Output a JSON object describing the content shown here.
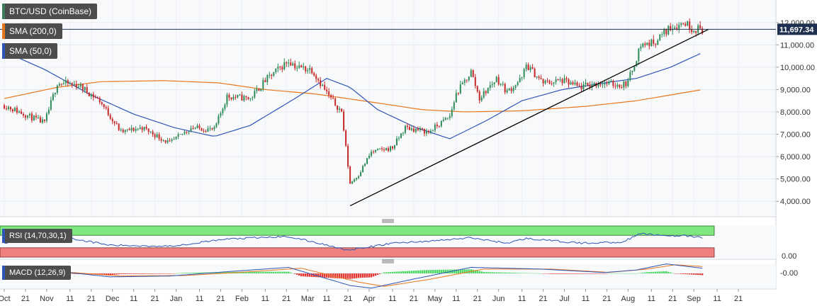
{
  "symbol_label": "BTC/USD (CoinBase)",
  "price_label": "11,697.34",
  "indicators": [
    {
      "label": "SMA (200,0)",
      "color": "#e8781e"
    },
    {
      "label": "SMA (50,0)",
      "color": "#2f55b4"
    }
  ],
  "rsi_label": "RSI (14,70,30,1)",
  "rsi_axis_label": "0.00",
  "macd_label": "MACD (12,26,9)",
  "macd_axis_label": "-0.00",
  "colors": {
    "up_candle": "#2e8b57",
    "down_candle": "#c62828",
    "sma200": "#e8781e",
    "sma50": "#2f55b4",
    "rsi_overbought_zone": "#7ee77e",
    "rsi_oversold_zone": "#f08080",
    "rsi_line": "#2f55b4",
    "macd_line": "#2f55b4",
    "signal_line": "#e8781e",
    "hist_pos": "#4cd964",
    "hist_neg": "#e53935",
    "price_tag": "#1f2f4f"
  },
  "chart_data": [
    {
      "type": "candlestick",
      "title": "BTC/USD (CoinBase)",
      "x_tick_labels": [
        "Oct",
        "21",
        "Nov",
        "11",
        "21",
        "Dec",
        "11",
        "21",
        "Jan",
        "11",
        "21",
        "Feb",
        "11",
        "21",
        "Mar",
        "11",
        "21",
        "Apr",
        "11",
        "21",
        "May",
        "11",
        "21",
        "Jun",
        "11",
        "21",
        "Jul",
        "11",
        "21",
        "Aug",
        "11",
        "21",
        "Sep",
        "11",
        "21"
      ],
      "y_tick_labels": [
        "4,000.00",
        "5,000.00",
        "6,000.00",
        "7,000.00",
        "8,000.00",
        "9,000.00",
        "10,000.00",
        "11,000.00",
        "12,000.00"
      ],
      "ylim": [
        3500,
        12500
      ],
      "close_anchors": [
        [
          "2019-10-01",
          8300
        ],
        [
          "2019-10-20",
          7500
        ],
        [
          "2019-10-26",
          9300
        ],
        [
          "2019-11-05",
          9200
        ],
        [
          "2019-11-15",
          8500
        ],
        [
          "2019-11-25",
          7100
        ],
        [
          "2019-12-05",
          7300
        ],
        [
          "2019-12-18",
          6600
        ],
        [
          "2019-12-28",
          7300
        ],
        [
          "2020-01-08",
          7200
        ],
        [
          "2020-01-14",
          8700
        ],
        [
          "2020-01-25",
          8600
        ],
        [
          "2020-02-01",
          9400
        ],
        [
          "2020-02-12",
          10300
        ],
        [
          "2020-02-16",
          10000
        ],
        [
          "2020-02-23",
          9900
        ],
        [
          "2020-03-02",
          8700
        ],
        [
          "2020-03-08",
          8000
        ],
        [
          "2020-03-12",
          4800
        ],
        [
          "2020-03-16",
          5200
        ],
        [
          "2020-03-22",
          6200
        ],
        [
          "2020-04-01",
          6400
        ],
        [
          "2020-04-07",
          7300
        ],
        [
          "2020-04-18",
          7100
        ],
        [
          "2020-04-28",
          7800
        ],
        [
          "2020-05-01",
          8800
        ],
        [
          "2020-05-08",
          9800
        ],
        [
          "2020-05-12",
          8600
        ],
        [
          "2020-05-20",
          9500
        ],
        [
          "2020-05-25",
          8900
        ],
        [
          "2020-06-01",
          9500
        ],
        [
          "2020-06-03",
          10100
        ],
        [
          "2020-06-11",
          9300
        ],
        [
          "2020-06-20",
          9400
        ],
        [
          "2020-06-28",
          9100
        ],
        [
          "2020-07-08",
          9300
        ],
        [
          "2020-07-18",
          9200
        ],
        [
          "2020-07-21",
          9350
        ],
        [
          "2020-07-27",
          11000
        ],
        [
          "2020-08-02",
          11100
        ],
        [
          "2020-08-10",
          11800
        ],
        [
          "2020-08-17",
          12000
        ],
        [
          "2020-08-20",
          11750
        ],
        [
          "2020-08-25",
          11697
        ]
      ],
      "sma200_anchors": [
        [
          "2019-10-01",
          8600
        ],
        [
          "2019-10-26",
          9100
        ],
        [
          "2019-11-15",
          9350
        ],
        [
          "2019-12-15",
          9400
        ],
        [
          "2020-01-10",
          9300
        ],
        [
          "2020-02-01",
          9000
        ],
        [
          "2020-02-25",
          8800
        ],
        [
          "2020-03-25",
          8400
        ],
        [
          "2020-04-15",
          8100
        ],
        [
          "2020-05-05",
          8000
        ],
        [
          "2020-06-01",
          8050
        ],
        [
          "2020-07-01",
          8250
        ],
        [
          "2020-07-25",
          8500
        ],
        [
          "2020-08-25",
          9000
        ]
      ],
      "sma50_anchors": [
        [
          "2019-10-01",
          10700
        ],
        [
          "2019-10-20",
          9900
        ],
        [
          "2019-11-10",
          8800
        ],
        [
          "2019-12-01",
          7900
        ],
        [
          "2019-12-20",
          7300
        ],
        [
          "2020-01-08",
          6900
        ],
        [
          "2020-01-25",
          7400
        ],
        [
          "2020-02-15",
          8600
        ],
        [
          "2020-03-01",
          9500
        ],
        [
          "2020-03-12",
          9100
        ],
        [
          "2020-03-25",
          8100
        ],
        [
          "2020-04-12",
          7300
        ],
        [
          "2020-04-28",
          6800
        ],
        [
          "2020-05-15",
          7600
        ],
        [
          "2020-06-01",
          8500
        ],
        [
          "2020-06-20",
          9000
        ],
        [
          "2020-07-10",
          9300
        ],
        [
          "2020-07-25",
          9500
        ],
        [
          "2020-08-10",
          10000
        ],
        [
          "2020-08-25",
          10650
        ]
      ],
      "trendline": [
        [
          "2020-03-12",
          3800
        ],
        [
          "2020-08-28",
          11697
        ]
      ]
    },
    {
      "type": "line",
      "name": "RSI (14,70,30,1)",
      "rsi_anchors": [
        [
          "2019-10-01",
          45
        ],
        [
          "2019-10-26",
          68
        ],
        [
          "2019-11-20",
          38
        ],
        [
          "2019-12-18",
          35
        ],
        [
          "2020-01-14",
          58
        ],
        [
          "2020-02-12",
          66
        ],
        [
          "2020-03-12",
          22
        ],
        [
          "2020-04-01",
          45
        ],
        [
          "2020-04-20",
          52
        ],
        [
          "2020-05-08",
          62
        ],
        [
          "2020-05-25",
          45
        ],
        [
          "2020-06-03",
          60
        ],
        [
          "2020-06-28",
          45
        ],
        [
          "2020-07-18",
          48
        ],
        [
          "2020-07-27",
          75
        ],
        [
          "2020-08-05",
          70
        ],
        [
          "2020-08-17",
          68
        ],
        [
          "2020-08-25",
          62
        ]
      ]
    },
    {
      "type": "bar",
      "name": "MACD (12,26,9)",
      "macd_anchors": [
        [
          "2019-10-01",
          -50
        ],
        [
          "2019-10-26",
          120
        ],
        [
          "2019-11-20",
          -200
        ],
        [
          "2019-12-18",
          -150
        ],
        [
          "2020-01-14",
          100
        ],
        [
          "2020-02-12",
          350
        ],
        [
          "2020-03-12",
          -700
        ],
        [
          "2020-03-22",
          -850
        ],
        [
          "2020-04-10",
          -350
        ],
        [
          "2020-05-08",
          350
        ],
        [
          "2020-06-10",
          250
        ],
        [
          "2020-07-10",
          50
        ],
        [
          "2020-07-25",
          200
        ],
        [
          "2020-08-08",
          550
        ],
        [
          "2020-08-25",
          300
        ]
      ],
      "signal_anchors": [
        [
          "2019-10-01",
          -20
        ],
        [
          "2019-10-30",
          80
        ],
        [
          "2019-11-25",
          -150
        ],
        [
          "2019-12-25",
          -120
        ],
        [
          "2020-01-20",
          60
        ],
        [
          "2020-02-18",
          300
        ],
        [
          "2020-03-16",
          -500
        ],
        [
          "2020-03-28",
          -750
        ],
        [
          "2020-04-18",
          -350
        ],
        [
          "2020-05-14",
          250
        ],
        [
          "2020-06-15",
          250
        ],
        [
          "2020-07-12",
          60
        ],
        [
          "2020-07-30",
          250
        ],
        [
          "2020-08-12",
          500
        ],
        [
          "2020-08-25",
          400
        ]
      ]
    }
  ]
}
